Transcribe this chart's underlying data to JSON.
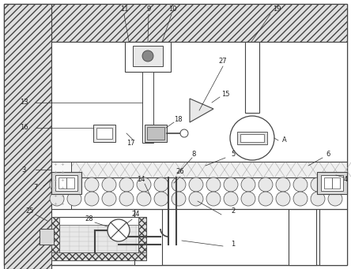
{
  "bg_color": "#ffffff",
  "lc": "#444444",
  "lc2": "#666666",
  "hatch_fc": "#d8d8d8",
  "figsize": [
    4.44,
    3.41
  ],
  "dpi": 100
}
